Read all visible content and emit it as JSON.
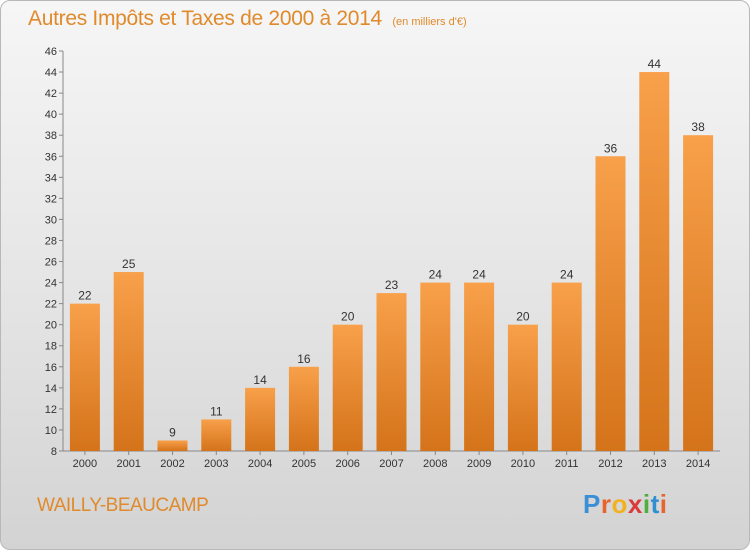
{
  "chart_data": {
    "type": "bar",
    "title": "Autres Impôts et Taxes de 2000 à 2014",
    "subtitle": "(en milliers d'€)",
    "categories": [
      "2000",
      "2001",
      "2002",
      "2003",
      "2004",
      "2005",
      "2006",
      "2007",
      "2008",
      "2009",
      "2010",
      "2011",
      "2012",
      "2013",
      "2014"
    ],
    "values": [
      22,
      25,
      9,
      11,
      14,
      16,
      20,
      23,
      24,
      24,
      20,
      24,
      36,
      44,
      38
    ],
    "ylim": [
      8,
      46
    ],
    "yticks": [
      8,
      10,
      12,
      14,
      16,
      18,
      20,
      22,
      24,
      26,
      28,
      30,
      32,
      34,
      36,
      38,
      40,
      42,
      44,
      46
    ],
    "grid": false,
    "bar_color": "#f0922e"
  },
  "footer": {
    "commune": "WAILLY-BEAUCAMP",
    "logo_letters": [
      "P",
      "r",
      "o",
      "x",
      "i",
      "t",
      "i"
    ],
    "logo_colors": [
      "#3a8fd6",
      "#e8642c",
      "#f2b21f",
      "#d93a3a",
      "#4fae3c",
      "#2f8fd0",
      "#e8642c"
    ]
  }
}
